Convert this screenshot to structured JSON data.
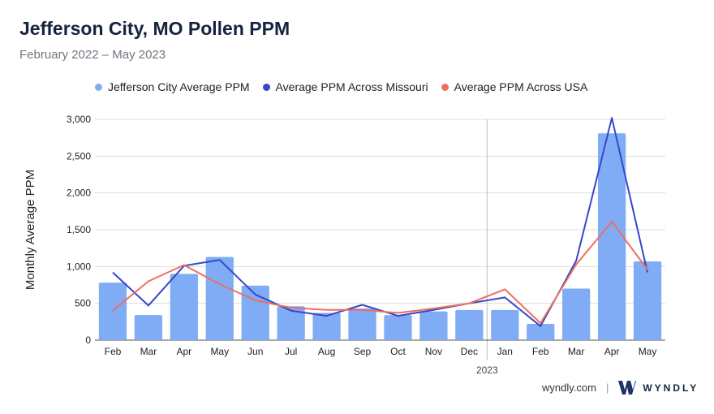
{
  "header": {
    "title": "Jefferson City, MO Pollen PPM",
    "subtitle": "February 2022 – May 2023"
  },
  "footer": {
    "site": "wyndly.com",
    "separator": "|",
    "brand": "WYNDLY"
  },
  "colors": {
    "bars": "#7facf5",
    "missouri": "#3747c9",
    "usa": "#ec6f60",
    "grid": "#dddddd",
    "divider": "#bbbbbb"
  },
  "chart_data": {
    "type": "bar",
    "title": "Jefferson City, MO Pollen PPM",
    "subtitle": "February 2022 – May 2023",
    "xlabel": "",
    "ylabel": "Monthly Average PPM",
    "ylim": [
      0,
      3000
    ],
    "yticks": [
      0,
      500,
      1000,
      1500,
      2000,
      2500,
      3000
    ],
    "ytick_labels": [
      "0",
      "500",
      "1,000",
      "1,500",
      "2,000",
      "2,500",
      "3,000"
    ],
    "categories": [
      "Feb",
      "Mar",
      "Apr",
      "May",
      "Jun",
      "Jul",
      "Aug",
      "Sep",
      "Oct",
      "Nov",
      "Dec",
      "Jan",
      "Feb",
      "Mar",
      "Apr",
      "May"
    ],
    "year_marker": {
      "label": "2023",
      "before_index": 11
    },
    "legend_position": "top",
    "grid": true,
    "series": [
      {
        "name": "Jefferson City Average PPM",
        "kind": "bar",
        "values": [
          780,
          340,
          900,
          1130,
          740,
          460,
          370,
          430,
          340,
          390,
          410,
          410,
          220,
          700,
          2810,
          1070
        ]
      },
      {
        "name": "Average PPM Across Missouri",
        "kind": "line",
        "values": [
          920,
          470,
          1010,
          1090,
          620,
          400,
          330,
          480,
          330,
          410,
          500,
          580,
          190,
          1080,
          3020,
          920
        ]
      },
      {
        "name": "Average PPM Across USA",
        "kind": "line",
        "values": [
          400,
          800,
          1020,
          760,
          540,
          440,
          410,
          410,
          370,
          430,
          500,
          690,
          230,
          1030,
          1610,
          960
        ]
      }
    ]
  }
}
